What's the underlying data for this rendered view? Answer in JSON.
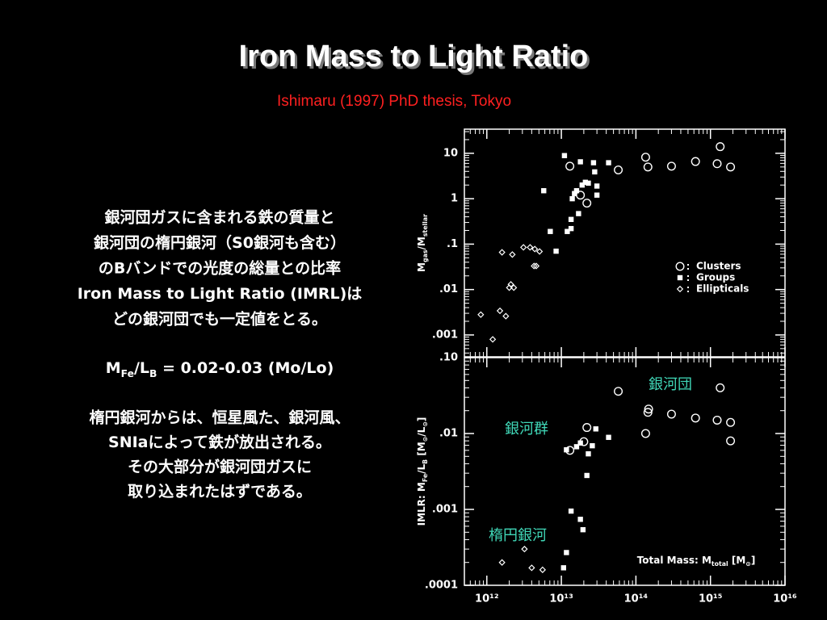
{
  "title": "Iron Mass to Light Ratio",
  "subtitle": "Ishimaru (1997) PhD thesis, Tokyo",
  "body": {
    "paragraph1": [
      "銀河団ガスに含まれる鉄の質量と",
      "銀河団の楕円銀河（S0銀河も含む）",
      "のBバンドでの光度の総量との比率",
      "Iron Mass to Light Ratio (IMRL)は",
      "どの銀河団でも一定値をとる。"
    ],
    "formula": [
      "M",
      "Fe",
      "/L",
      "B",
      " = 0.02-0.03  (Mo/Lo)"
    ],
    "paragraph2": [
      "楕円銀河からは、恒星風た、銀河風、",
      "SNIaによって鉄が放出される。",
      "その大部分が銀河団ガスに",
      "取り込まれたはずである。"
    ]
  },
  "chart_data": [
    {
      "type": "scatter",
      "log_x": true,
      "log_y": true,
      "xlim": [
        500000000000.0,
        1e+16
      ],
      "xticks": [
        {
          "value": 1000000000000.0,
          "label": "10¹²"
        },
        {
          "value": 10000000000000.0,
          "label": "10¹³"
        },
        {
          "value": 100000000000000.0,
          "label": "10¹⁴"
        },
        {
          "value": 1000000000000000.0,
          "label": "10¹⁵"
        },
        {
          "value": 1e+16,
          "label": "10¹⁶"
        }
      ],
      "ylim": [
        0.00033,
        34
      ],
      "yticks": [
        10,
        1,
        {
          "value": 0.1,
          "label": ".1"
        },
        {
          "value": 0.01,
          "label": ".01"
        },
        {
          "value": 0.001,
          "label": ".001"
        }
      ],
      "ylabel": [
        "M",
        "gas",
        "/M",
        "stellar"
      ],
      "legend": "right",
      "series": [
        {
          "name": "Clusters",
          "marker": "circle",
          "color": "#ffffff",
          "x": [
            13000000000000.0,
            18000000000000.0,
            22000000000000.0,
            58000000000000.0,
            135000000000000.0,
            145000000000000.0,
            300000000000000.0,
            630000000000000.0,
            1230000000000000.0,
            1350000000000000.0,
            1860000000000000.0
          ],
          "y": [
            5.2,
            1.2,
            0.8,
            4.3,
            8.2,
            5.0,
            5.2,
            6.6,
            5.9,
            14,
            5.0
          ]
        },
        {
          "name": "Groups",
          "marker": "square",
          "color": "#ffffff",
          "x": [
            11000000000000.0,
            5800000000000.0,
            7100000000000.0,
            8500000000000.0,
            12000000000000.0,
            13500000000000.0,
            13500000000000.0,
            14000000000000.0,
            15000000000000.0,
            16000000000000.0,
            18000000000000.0,
            17000000000000.0,
            19000000000000.0,
            21000000000000.0,
            23000000000000.0,
            27000000000000.0,
            28000000000000.0,
            30000000000000.0,
            30000000000000.0,
            43000000000000.0
          ],
          "y": [
            8.9,
            1.5,
            0.19,
            0.07,
            0.19,
            0.35,
            0.22,
            1.0,
            1.3,
            1.5,
            6.5,
            0.47,
            2.0,
            2.3,
            2.2,
            6.2,
            3.9,
            1.9,
            1.2,
            6.2
          ]
        },
        {
          "name": "Ellipticals",
          "marker": "diamond",
          "color": "#ffffff",
          "x": [
            830000000000.0,
            1200000000000.0,
            1600000000000.0,
            2200000000000.0,
            1500000000000.0,
            1800000000000.0,
            2000000000000.0,
            2100000000000.0,
            2300000000000.0,
            3100000000000.0,
            3800000000000.0,
            4300000000000.0,
            4600000000000.0,
            4400000000000.0,
            5100000000000.0
          ],
          "y": [
            0.0028,
            0.0008,
            0.066,
            0.059,
            0.0034,
            0.0026,
            0.011,
            0.013,
            0.011,
            0.085,
            0.085,
            0.033,
            0.033,
            0.078,
            0.069
          ]
        }
      ]
    },
    {
      "type": "scatter",
      "log_x": true,
      "log_y": true,
      "xlim": [
        500000000000.0,
        1e+16
      ],
      "xticks": [
        {
          "value": 1000000000000.0,
          "label": "10¹²"
        },
        {
          "value": 10000000000000.0,
          "label": "10¹³"
        },
        {
          "value": 100000000000000.0,
          "label": "10¹⁴"
        },
        {
          "value": 1000000000000000.0,
          "label": "10¹⁵"
        },
        {
          "value": 1e+16,
          "label": "10¹⁶"
        }
      ],
      "ylim": [
        0.0001,
        0.1
      ],
      "yticks": [
        {
          "value": 0.1,
          "label": ".10"
        },
        {
          "value": 0.01,
          "label": ".01"
        },
        {
          "value": 0.001,
          "label": ".001"
        },
        {
          "value": 0.0001,
          "label": ".0001"
        }
      ],
      "ylabel": [
        "IMLR: M",
        "Fe",
        "/L",
        "B",
        " [M",
        "⊙",
        "/L",
        "⊙",
        "]"
      ],
      "xlabel": [
        "Total Mass: M",
        "total",
        "  [M",
        "⊙",
        "]"
      ],
      "annotations": [
        "銀河団",
        "銀河群",
        "楕円銀河"
      ],
      "series": [
        {
          "name": "Clusters",
          "marker": "circle",
          "color": "#ffffff",
          "x": [
            13000000000000.0,
            20000000000000.0,
            22000000000000.0,
            58000000000000.0,
            135000000000000.0,
            145000000000000.0,
            148000000000000.0,
            300000000000000.0,
            630000000000000.0,
            1230000000000000.0,
            1350000000000000.0,
            1860000000000000.0,
            1860000000000000.0
          ],
          "y": [
            0.006,
            0.0078,
            0.012,
            0.036,
            0.01,
            0.019,
            0.021,
            0.018,
            0.016,
            0.015,
            0.04,
            0.014,
            0.008
          ]
        },
        {
          "name": "Groups",
          "marker": "square",
          "color": "#ffffff",
          "x": [
            11700000000000.0,
            16000000000000.0,
            18000000000000.0,
            23000000000000.0,
            26000000000000.0,
            29000000000000.0,
            43000000000000.0,
            22000000000000.0,
            13500000000000.0,
            18000000000000.0,
            19500000000000.0,
            11700000000000.0,
            10700000000000.0
          ],
          "y": [
            0.0061,
            0.0067,
            0.0075,
            0.0054,
            0.0069,
            0.0115,
            0.0089,
            0.0028,
            0.00095,
            0.00074,
            0.00054,
            0.00027,
            0.00017
          ]
        },
        {
          "name": "Ellipticals",
          "marker": "diamond",
          "color": "#ffffff",
          "x": [
            1600000000000.0,
            3200000000000.0,
            4000000000000.0,
            5600000000000.0
          ],
          "y": [
            0.0002,
            0.0003,
            0.00017,
            0.00016
          ]
        }
      ]
    }
  ]
}
